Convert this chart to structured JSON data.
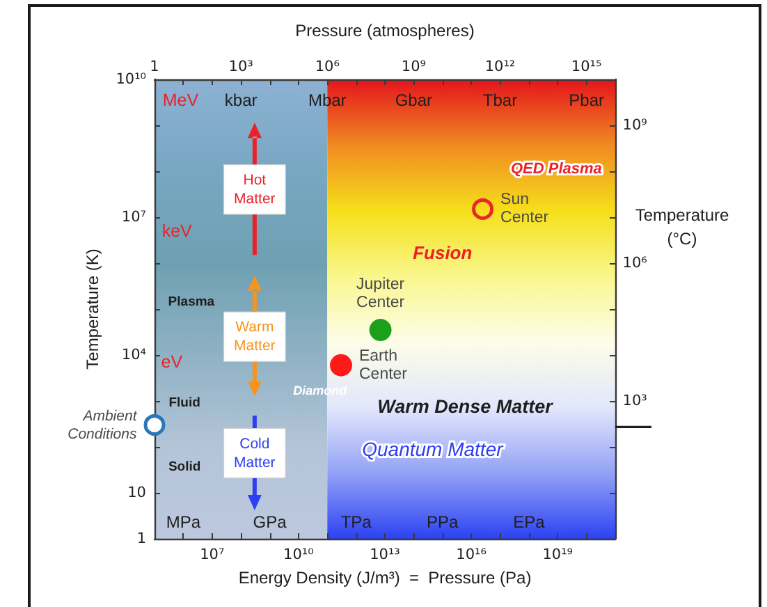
{
  "chart_data": {
    "type": "scatter",
    "xlabel": "Energy Density (J/m³)  =  Pressure (Pa)",
    "x2label": "Pressure (atmospheres)",
    "ylabel": "Temperature (K)",
    "y2label": "Temperature (°C)",
    "log": "xy",
    "marker": "circle",
    "xlim": [
      100000.0,
      1e+21
    ],
    "xticks": [
      {
        "value": 1000000.0,
        "label": null
      },
      {
        "value": 10000000.0,
        "label": "10⁷"
      },
      {
        "value": 100000000.0,
        "label": null
      },
      {
        "value": 1000000000.0,
        "label": null
      },
      {
        "value": 10000000000.0,
        "label": "10¹⁰"
      },
      {
        "value": 100000000000.0,
        "label": null
      },
      {
        "value": 1000000000000.0,
        "label": null
      },
      {
        "value": 10000000000000.0,
        "label": "10¹³"
      },
      {
        "value": 100000000000000.0,
        "label": null
      },
      {
        "value": 1000000000000000.0,
        "label": null
      },
      {
        "value": 1e+16,
        "label": "10¹⁶"
      },
      {
        "value": 1e+17,
        "label": null
      },
      {
        "value": 1e+18,
        "label": null
      },
      {
        "value": 1e+19,
        "label": "10¹⁹"
      },
      {
        "value": 1e+20,
        "label": null
      }
    ],
    "ylim": [
      1,
      10000000000.0
    ],
    "yticks": [
      1,
      10,
      {
        "value": 100,
        "label": null
      },
      {
        "value": 1000.0,
        "label": null
      },
      {
        "value": 10000.0,
        "label": "10⁴"
      },
      {
        "value": 100000.0,
        "label": null
      },
      {
        "value": 1000000.0,
        "label": null
      },
      {
        "value": 10000000.0,
        "label": "10⁷"
      },
      {
        "value": 100000000.0,
        "label": null
      },
      {
        "value": 1000000000.0,
        "label": null
      },
      {
        "value": 10000000000.0,
        "label": "10¹⁰"
      }
    ],
    "series": [
      {
        "name": "Ambient Conditions",
        "color": "#2a78b8",
        "x": [
          100000.0
        ],
        "values": [
          300
        ]
      },
      {
        "name": "Earth Center",
        "color": "#ff1a1a",
        "x": [
          300000000000.0
        ],
        "values": [
          6000
        ]
      },
      {
        "name": "Jupiter Center",
        "color": "#1ca01c",
        "x": [
          7000000000000.0
        ],
        "values": [
          35000.0
        ]
      },
      {
        "name": "Sun Center",
        "color": "#e8262b",
        "x": [
          2.5e+16
        ],
        "values": [
          15000000.0
        ]
      }
    ],
    "bands": [
      {
        "axis": "x",
        "from": 100000.0,
        "to": 100000000000.0,
        "color": [
          "#8db1d3",
          "#78a7c2",
          "#6ea0b2",
          "#8fb2c4",
          "#b4c4d8",
          "#bcc8de"
        ]
      },
      {
        "axis": "x",
        "from": 100000000000.0,
        "to": 1e+21,
        "color": [
          "#e4141c",
          "#f08a22",
          "#f6df1a",
          "#f9f78c",
          "#fdfde8",
          "#e2e7fc",
          "#93a1f6",
          "#2b42f2"
        ]
      }
    ],
    "annotations": [
      "1",
      "10³",
      "10⁶",
      "10⁹",
      "10¹²",
      "10¹⁵",
      "10⁹",
      "10⁶",
      "10³",
      "MeV",
      "keV",
      "eV",
      "kbar",
      "Mbar",
      "Gbar",
      "Tbar",
      "Pbar",
      "MPa",
      "GPa",
      "TPa",
      "PPa",
      "EPa",
      "Plasma",
      "Fluid",
      "Solid",
      "Hot Matter",
      "Warm Matter",
      "Cold Matter",
      "Diamond",
      "Fusion",
      "QED Plasma",
      "Warm Dense Matter",
      "Quantum Matter"
    ]
  }
}
